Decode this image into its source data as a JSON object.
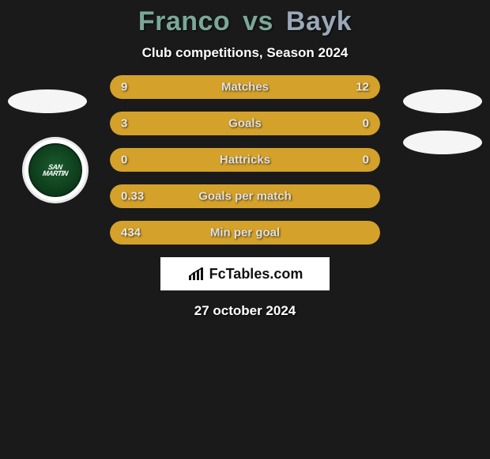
{
  "title": {
    "player1": "Franco",
    "vs": "vs",
    "player2": "Bayk",
    "player1_color": "#7aa896",
    "player2_color": "#9aa8b8"
  },
  "subtitle": "Club competitions, Season 2024",
  "badge": {
    "line1": "SAN",
    "line2": "MARTIN"
  },
  "bars": {
    "track_color": "#2a2a2a",
    "left_color": "#d4a12a",
    "right_color": "#d4a12a",
    "rows": [
      {
        "label": "Matches",
        "left_val": "9",
        "right_val": "12",
        "left_pct": 40,
        "right_pct": 60
      },
      {
        "label": "Goals",
        "left_val": "3",
        "right_val": "0",
        "left_pct": 78,
        "right_pct": 22
      },
      {
        "label": "Hattricks",
        "left_val": "0",
        "right_val": "0",
        "left_pct": 100,
        "right_pct": 0
      },
      {
        "label": "Goals per match",
        "left_val": "0.33",
        "right_val": "",
        "left_pct": 100,
        "right_pct": 0
      },
      {
        "label": "Min per goal",
        "left_val": "434",
        "right_val": "",
        "left_pct": 100,
        "right_pct": 0
      }
    ]
  },
  "brand": "FcTables.com",
  "date": "27 october 2024",
  "background_color": "#1a1a1a"
}
